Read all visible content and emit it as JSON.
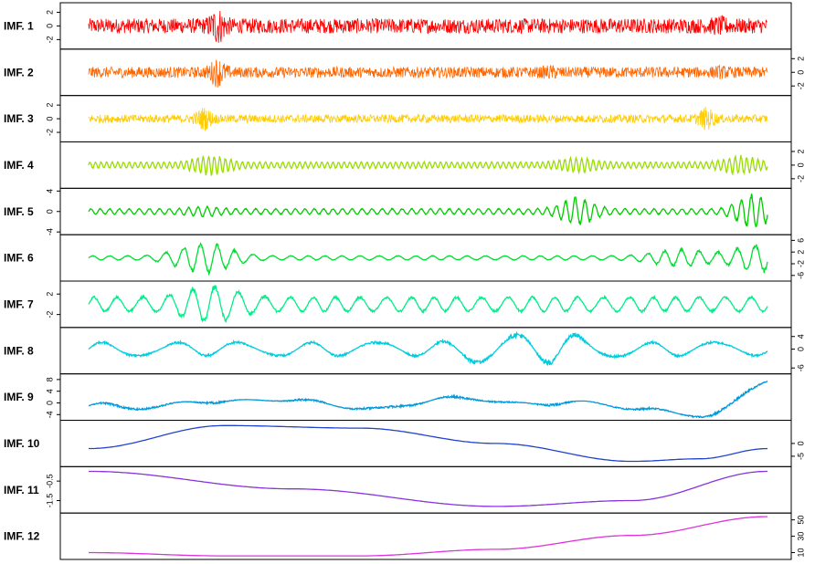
{
  "chart_data": [
    {
      "type": "line",
      "title": "IMF. 1",
      "color": "#ff0000",
      "axis": "left",
      "yticks": [
        2,
        0,
        -2
      ],
      "ylim": [
        -3,
        3
      ],
      "amplitude": 1.1,
      "bursts": [
        {
          "at": 0.19,
          "gain": 2.6
        },
        {
          "at": 0.93,
          "gain": 1.4
        }
      ],
      "freq": 900
    },
    {
      "type": "line",
      "title": "IMF. 2",
      "color": "#ff6600",
      "axis": "right",
      "yticks": [
        2,
        0,
        -2
      ],
      "ylim": [
        -3,
        3
      ],
      "amplitude": 0.8,
      "bursts": [
        {
          "at": 0.19,
          "gain": 2.8
        },
        {
          "at": 0.68,
          "gain": 1.4
        },
        {
          "at": 0.93,
          "gain": 1.3
        }
      ],
      "freq": 450
    },
    {
      "type": "line",
      "title": "IMF. 3",
      "color": "#ffcc00",
      "axis": "left",
      "yticks": [
        2,
        0,
        -2
      ],
      "ylim": [
        -3,
        3
      ],
      "amplitude": 0.6,
      "bursts": [
        {
          "at": 0.17,
          "gain": 3.0
        },
        {
          "at": 0.91,
          "gain": 3.0
        }
      ],
      "freq": 230
    },
    {
      "type": "line",
      "title": "IMF. 4",
      "color": "#99dd00",
      "axis": "right",
      "yticks": [
        2,
        0,
        -2
      ],
      "ylim": [
        -3,
        3
      ],
      "amplitude": 0.5,
      "bursts": [
        {
          "at": 0.18,
          "gain": 3.2
        },
        {
          "at": 0.72,
          "gain": 2.4
        },
        {
          "at": 0.96,
          "gain": 3.0
        }
      ],
      "freq": 120
    },
    {
      "type": "line",
      "title": "IMF. 5",
      "color": "#00cc00",
      "axis": "left",
      "yticks": [
        4,
        0,
        -4
      ],
      "ylim": [
        -4,
        4
      ],
      "amplitude": 0.6,
      "bursts": [
        {
          "at": 0.17,
          "gain": 1.8
        },
        {
          "at": 0.72,
          "gain": 5.0
        },
        {
          "at": 0.98,
          "gain": 6.0
        }
      ],
      "freq": 70
    },
    {
      "type": "line",
      "title": "IMF. 6",
      "color": "#00dd33",
      "axis": "right",
      "yticks": [
        6,
        2,
        -2,
        -6
      ],
      "ylim": [
        -7,
        7
      ],
      "amplitude": 0.8,
      "bursts": [
        {
          "at": 0.17,
          "gain": 7.0
        },
        {
          "at": 0.87,
          "gain": 4.0
        },
        {
          "at": 0.99,
          "gain": 6.5
        }
      ],
      "freq": 38
    },
    {
      "type": "line",
      "title": "IMF. 7",
      "color": "#00ee88",
      "axis": "left",
      "yticks": [
        2,
        -2
      ],
      "ylim": [
        -4,
        4
      ],
      "amplitude": 1.6,
      "bursts": [
        {
          "at": 0.18,
          "gain": 2.5
        }
      ],
      "freq": 28
    },
    {
      "type": "line",
      "title": "IMF. 8",
      "color": "#00ccdd",
      "axis": "right",
      "yticks": [
        4,
        0,
        -6
      ],
      "ylim": [
        -7,
        6
      ],
      "amplitude": 2.5,
      "bursts": [
        {
          "at": 0.6,
          "gain": 2.4
        },
        {
          "at": 0.7,
          "gain": 2.2
        }
      ],
      "freq": 10
    },
    {
      "type": "line",
      "title": "IMF. 9",
      "color": "#0099dd",
      "axis": "left",
      "yticks": [
        8,
        4,
        0,
        -4
      ],
      "ylim": [
        -5,
        9
      ],
      "amplitude": 2.4,
      "bursts": [],
      "freq": 4,
      "trend": [
        [
          0,
          -1
        ],
        [
          0.07,
          -4
        ],
        [
          0.18,
          2
        ],
        [
          0.34,
          -1
        ],
        [
          0.48,
          1
        ],
        [
          0.6,
          -1
        ],
        [
          0.7,
          1.5
        ],
        [
          0.82,
          -4
        ],
        [
          0.9,
          -3
        ],
        [
          1.0,
          8
        ]
      ]
    },
    {
      "type": "line",
      "title": "IMF. 10",
      "color": "#2244cc",
      "axis": "right",
      "yticks": [
        0,
        -5
      ],
      "ylim": [
        -8,
        8
      ],
      "amplitude": 0,
      "bursts": [],
      "freq": 0,
      "trend": [
        [
          0,
          -2
        ],
        [
          0.2,
          7
        ],
        [
          0.4,
          6
        ],
        [
          0.6,
          0
        ],
        [
          0.8,
          -7
        ],
        [
          0.9,
          -6
        ],
        [
          1.0,
          -2
        ]
      ]
    },
    {
      "type": "line",
      "title": "IMF. 11",
      "color": "#8833dd",
      "axis": "left",
      "yticks": [
        -0.5,
        -1.5
      ],
      "ylim": [
        -2.0,
        0.1
      ],
      "amplitude": 0,
      "bursts": [],
      "freq": 0,
      "trend": [
        [
          0,
          0.0
        ],
        [
          0.3,
          -0.9
        ],
        [
          0.6,
          -1.8
        ],
        [
          0.8,
          -1.5
        ],
        [
          1.0,
          0.0
        ]
      ]
    },
    {
      "type": "line",
      "title": "IMF. 12",
      "color": "#dd33dd",
      "axis": "right",
      "yticks": [
        50,
        30,
        10
      ],
      "ylim": [
        5,
        55
      ],
      "amplitude": 0,
      "bursts": [],
      "freq": 0,
      "trend": [
        [
          0,
          10
        ],
        [
          0.2,
          6
        ],
        [
          0.4,
          6
        ],
        [
          0.6,
          14
        ],
        [
          0.8,
          31
        ],
        [
          1.0,
          54
        ]
      ]
    }
  ]
}
